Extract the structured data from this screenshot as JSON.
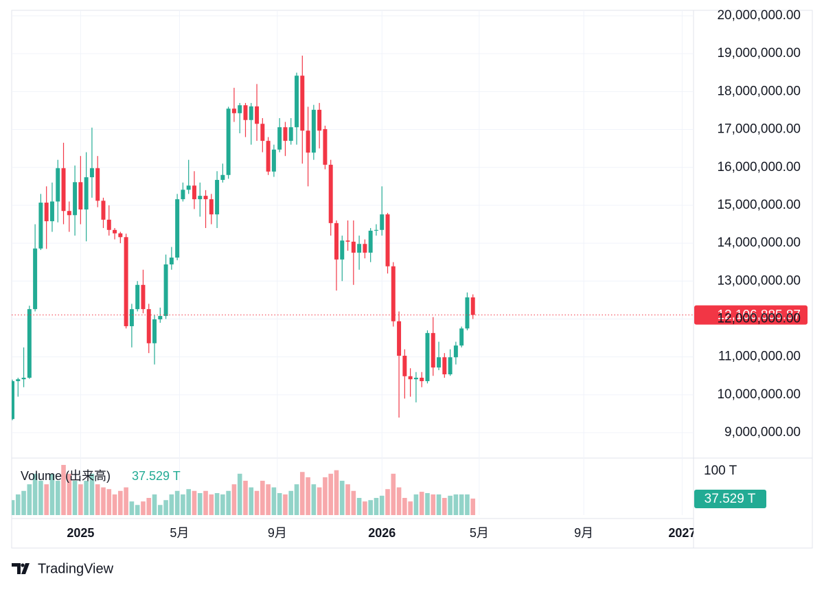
{
  "chart_data": {
    "type": "candlestick",
    "categories": [
      null,
      null,
      null,
      null,
      null,
      null,
      null,
      null,
      null,
      null,
      null,
      null,
      null,
      null,
      null,
      null,
      null,
      null,
      null,
      null,
      null,
      null,
      null,
      null,
      null,
      null,
      null,
      null,
      null,
      null,
      null,
      null,
      null,
      null,
      null,
      null,
      null,
      null,
      null,
      null,
      null,
      null,
      null,
      null,
      null,
      null,
      null,
      null,
      null,
      null,
      null,
      null,
      null,
      null,
      null,
      null,
      null,
      null,
      null,
      null,
      null,
      null,
      null,
      null,
      null,
      null,
      null,
      null,
      null,
      null,
      null,
      null,
      null,
      null,
      null,
      null,
      null,
      null,
      null,
      null,
      null,
      null
    ],
    "open": [
      9360000,
      10360000,
      10410000,
      10450000,
      12260000,
      13860000,
      15070000,
      14580000,
      15100000,
      15980000,
      14850000,
      14740000,
      15610000,
      14890000,
      15740000,
      15980000,
      15120000,
      14620000,
      14350000,
      14260000,
      14160000,
      11810000,
      12260000,
      12900000,
      12260000,
      11360000,
      11990000,
      12080000,
      13440000,
      13620000,
      15160000,
      15410000,
      15520000,
      15160000,
      15250000,
      15160000,
      14760000,
      15670000,
      15800000,
      17550000,
      17430000,
      17640000,
      17250000,
      17610000,
      17150000,
      16700000,
      15890000,
      16470000,
      17060000,
      16700000,
      17060000,
      18420000,
      16970000,
      16390000,
      17520000,
      17010000,
      16070000,
      14530000,
      13570000,
      14070000,
      14040000,
      13750000,
      13980000,
      13750000,
      14330000,
      14350000,
      14760000,
      13390000,
      11940000,
      11030000,
      10490000,
      10410000,
      10450000,
      10360000,
      11630000,
      10720000,
      10990000,
      10540000,
      10990000,
      11300000,
      11750000,
      12570000
    ],
    "high": [
      10400000,
      10450000,
      11250000,
      12350000,
      14500000,
      15300000,
      15500000,
      15600000,
      16200000,
      16650000,
      15100000,
      16050000,
      16300000,
      16400000,
      17050000,
      16300000,
      15200000,
      15000000,
      14400000,
      14300000,
      14250000,
      12400000,
      13000000,
      13300000,
      12400000,
      12100000,
      12300000,
      13700000,
      13900000,
      15300000,
      15600000,
      16200000,
      15900000,
      15600000,
      15400000,
      15300000,
      15900000,
      16100000,
      17600000,
      18100000,
      17700000,
      17700000,
      17700000,
      18200000,
      17300000,
      16800000,
      16600000,
      17300000,
      17200000,
      17300000,
      18500000,
      18950000,
      17600000,
      17650000,
      17700000,
      17100000,
      16200000,
      14600000,
      14200000,
      14600000,
      14600000,
      14200000,
      14100000,
      14400000,
      14500000,
      15500000,
      14800000,
      13500000,
      12200000,
      11200000,
      10700000,
      10600000,
      10600000,
      11700000,
      12050000,
      11400000,
      11100000,
      11200000,
      11400000,
      11800000,
      12700000,
      12650000
    ],
    "low": [
      9330000,
      9950000,
      10200000,
      10420000,
      12200000,
      13820000,
      13850000,
      14300000,
      14550000,
      14500000,
      14300000,
      14200000,
      14500000,
      14050000,
      15200000,
      14950000,
      14400000,
      14200000,
      14100000,
      14000000,
      11750000,
      11250000,
      12200000,
      12150000,
      11100000,
      10800000,
      11900000,
      12000000,
      13300000,
      13550000,
      15100000,
      15300000,
      14900000,
      14700000,
      14400000,
      14500000,
      14400000,
      15600000,
      15700000,
      17200000,
      16900000,
      16800000,
      16600000,
      16700000,
      16400000,
      15800000,
      15750000,
      16400000,
      16300000,
      16600000,
      16600000,
      16100000,
      15500000,
      16200000,
      16500000,
      15950000,
      14200000,
      12750000,
      13000000,
      13800000,
      12900000,
      13300000,
      13600000,
      13500000,
      14200000,
      14200000,
      13200000,
      11800000,
      9400000,
      9900000,
      9950000,
      9800000,
      10200000,
      10300000,
      10500000,
      10650000,
      10450000,
      10500000,
      10800000,
      11250000,
      11700000,
      12000000
    ],
    "close": [
      10360000,
      10410000,
      10450000,
      12260000,
      13860000,
      15070000,
      14580000,
      15100000,
      15980000,
      14850000,
      14740000,
      15610000,
      14890000,
      15740000,
      15980000,
      15120000,
      14620000,
      14350000,
      14260000,
      14160000,
      11810000,
      12260000,
      12900000,
      12260000,
      11360000,
      11990000,
      12080000,
      13440000,
      13620000,
      15160000,
      15410000,
      15520000,
      15160000,
      15250000,
      15160000,
      14760000,
      15670000,
      15800000,
      17550000,
      17430000,
      17640000,
      17250000,
      17610000,
      17150000,
      16700000,
      15890000,
      16470000,
      17060000,
      16700000,
      17060000,
      18420000,
      16970000,
      16390000,
      17520000,
      16970000,
      16070000,
      14530000,
      13570000,
      14070000,
      14040000,
      13750000,
      13980000,
      13750000,
      14330000,
      14350000,
      14760000,
      13390000,
      11940000,
      11030000,
      10490000,
      10410000,
      10450000,
      10360000,
      11630000,
      10720000,
      10990000,
      10540000,
      10990000,
      11300000,
      11750000,
      12570000,
      12106885.87
    ],
    "last_close_label": "12,106,885.87",
    "up_color": "#22ab94",
    "down_color": "#f23645",
    "ylim": [
      8330000,
      20145000
    ],
    "yticks": [
      {
        "value": 9000000,
        "label": "9,000,000.00"
      },
      {
        "value": 10000000,
        "label": "10,000,000.00"
      },
      {
        "value": 11000000,
        "label": "11,000,000.00"
      },
      {
        "value": 12000000,
        "label": "12,000,000.00"
      },
      {
        "value": 13000000,
        "label": "13,000,000.00"
      },
      {
        "value": 14000000,
        "label": "14,000,000.00"
      },
      {
        "value": 15000000,
        "label": "15,000,000.00"
      },
      {
        "value": 16000000,
        "label": "16,000,000.00"
      },
      {
        "value": 17000000,
        "label": "17,000,000.00"
      },
      {
        "value": 18000000,
        "label": "18,000,000.00"
      },
      {
        "value": 19000000,
        "label": "19,000,000.00"
      },
      {
        "value": 20000000,
        "label": "20,000,000.00"
      }
    ],
    "xlim": [
      -0.12,
      119.8
    ],
    "xticks": [
      {
        "value": 12,
        "label": "2025"
      },
      {
        "value": 29.4,
        "label": "5月"
      },
      {
        "value": 46.6,
        "label": "9月"
      },
      {
        "value": 65,
        "label": "2026"
      },
      {
        "value": 82.1,
        "label": "5月"
      },
      {
        "value": 100.5,
        "label": "9月"
      },
      {
        "value": 117.8,
        "label": "2027"
      }
    ],
    "grid": true,
    "volume": {
      "name": "Volume (出来高)",
      "values": [
        34,
        47,
        55,
        70,
        94,
        78,
        70,
        94,
        78,
        114,
        94,
        78,
        70,
        78,
        94,
        70,
        63,
        59,
        47,
        55,
        63,
        31,
        23,
        31,
        39,
        47,
        23,
        34,
        47,
        55,
        47,
        59,
        55,
        50,
        55,
        47,
        50,
        47,
        55,
        70,
        94,
        78,
        63,
        55,
        78,
        70,
        63,
        50,
        47,
        55,
        70,
        98,
        86,
        70,
        63,
        86,
        94,
        102,
        78,
        70,
        55,
        39,
        31,
        34,
        39,
        44,
        59,
        94,
        63,
        39,
        31,
        47,
        53,
        50,
        47,
        47,
        39,
        44,
        47,
        47,
        47,
        37.529
      ],
      "last_label": "37.529 T",
      "up_color": "#92d3c8",
      "down_color": "#f7a8ab",
      "badge_color": "#22ab94",
      "ylim": [
        0,
        128
      ],
      "yticks": [
        {
          "value": 100,
          "label": "100 T"
        }
      ]
    },
    "brand": "TradingView"
  }
}
